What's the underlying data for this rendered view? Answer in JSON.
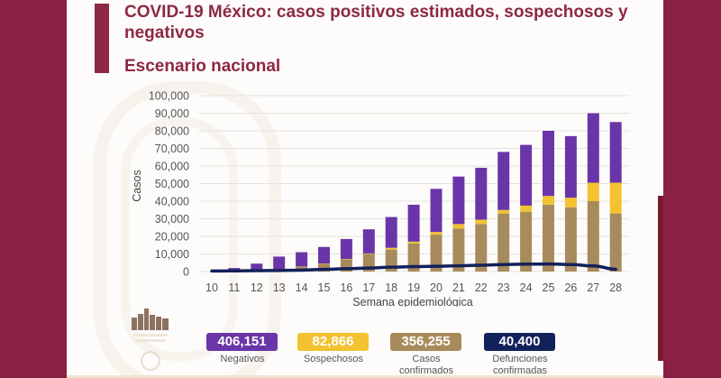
{
  "slide": {
    "title_line1": "COVID-19 México: casos positivos estimados, sospechosos y",
    "title_line2": "negativos",
    "subtitle": "Escenario nacional",
    "colors": {
      "maroon": "#8b2045",
      "negativos": "#6a35a8",
      "sospechosos": "#f2c230",
      "confirmados": "#a88b5c",
      "defunciones": "#13215a"
    },
    "logo_icon": "gobierno-de-mexico-logo"
  },
  "summary": [
    {
      "value": "406,151",
      "label_line1": "Negativos",
      "label_line2": "",
      "color": "#6a35a8"
    },
    {
      "value": "82,866",
      "label_line1": "Sospechosos",
      "label_line2": "",
      "color": "#f2c230"
    },
    {
      "value": "356,255",
      "label_line1": "Casos",
      "label_line2": "confirmados",
      "color": "#a88b5c"
    },
    {
      "value": "40,400",
      "label_line1": "Defunciones",
      "label_line2": "confirmadas",
      "color": "#13215a"
    }
  ],
  "chart_data": {
    "type": "bar",
    "stacked": true,
    "title": "Escenario nacional",
    "xlabel": "Semana epidemiológica",
    "ylabel": "Casos",
    "ylim": [
      0,
      100000
    ],
    "yticks": [
      0,
      10000,
      20000,
      30000,
      40000,
      50000,
      60000,
      70000,
      80000,
      90000,
      100000
    ],
    "ytick_labels": [
      "0",
      "10,000",
      "20,000",
      "30,000",
      "40,000",
      "50,000",
      "60,000",
      "70,000",
      "80,000",
      "90,000",
      "100,000"
    ],
    "grid": true,
    "legend": "none",
    "categories": [
      "10",
      "11",
      "12",
      "13",
      "14",
      "15",
      "16",
      "17",
      "18",
      "19",
      "20",
      "21",
      "22",
      "23",
      "24",
      "25",
      "26",
      "27",
      "28"
    ],
    "series": [
      {
        "name": "Casos confirmados",
        "type": "bar",
        "color": "#a88b5c",
        "values": [
          0,
          300,
          600,
          1000,
          3000,
          4500,
          7000,
          10000,
          12500,
          16000,
          21000,
          24500,
          27000,
          33000,
          34000,
          38000,
          36500,
          40000,
          33000
        ]
      },
      {
        "name": "Sospechosos",
        "type": "bar",
        "color": "#f2c230",
        "values": [
          0,
          0,
          0,
          0,
          0,
          100,
          200,
          300,
          1000,
          1000,
          1500,
          2500,
          2500,
          2000,
          3500,
          5000,
          5500,
          10500,
          17500
        ]
      },
      {
        "name": "Negativos",
        "type": "bar",
        "color": "#6a35a8",
        "values": [
          0,
          1700,
          3900,
          7500,
          8000,
          9400,
          11300,
          13700,
          17500,
          21000,
          24500,
          27000,
          29500,
          33000,
          34500,
          37000,
          35000,
          39500,
          34500
        ]
      },
      {
        "name": "Defunciones confirmadas",
        "type": "line",
        "color": "#13215a",
        "values": [
          300,
          400,
          500,
          600,
          800,
          1200,
          1600,
          2000,
          2500,
          2800,
          3000,
          3300,
          3600,
          4000,
          4200,
          4300,
          4000,
          3200,
          1300
        ]
      }
    ]
  }
}
